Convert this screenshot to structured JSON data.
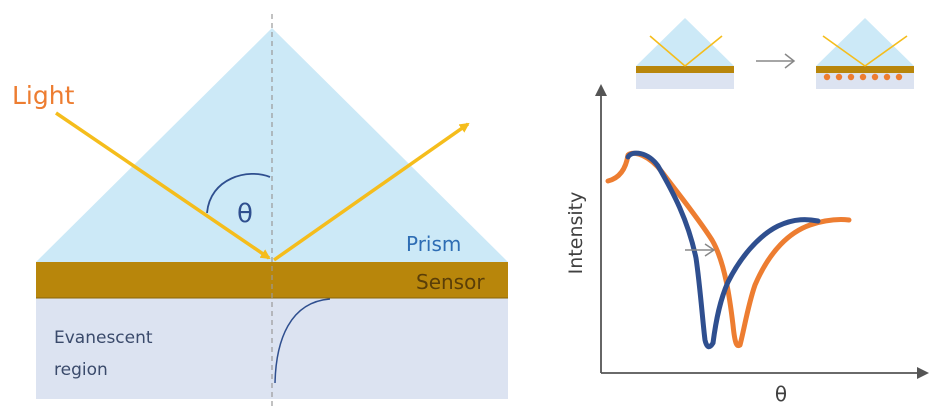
{
  "left_diagram": {
    "light_label": "Light",
    "angle_symbol": "θ",
    "prism_label": "Prism",
    "sensor_label": "Sensor",
    "evanescent_label_line1": "Evanescent",
    "evanescent_label_line2": "region"
  },
  "right_chart": {
    "y_axis_label": "Intensity",
    "x_axis_label": "θ"
  },
  "colors": {
    "prism_fill": "#cce9f7",
    "sensor_gold": "#b8860b",
    "evanescent_fill": "#dce3f1",
    "light_beam": "#f5bd1c",
    "light_label": "#ed7d31",
    "prism_text": "#2e6db4",
    "curve_before": "#2f4f8f",
    "curve_after": "#ed7d31",
    "molecule_dots": "#ed7d31",
    "axis": "#555555",
    "arrow_gray": "#888888",
    "label_dark": "#404040",
    "evanescent_text": "#3a4a6b"
  }
}
